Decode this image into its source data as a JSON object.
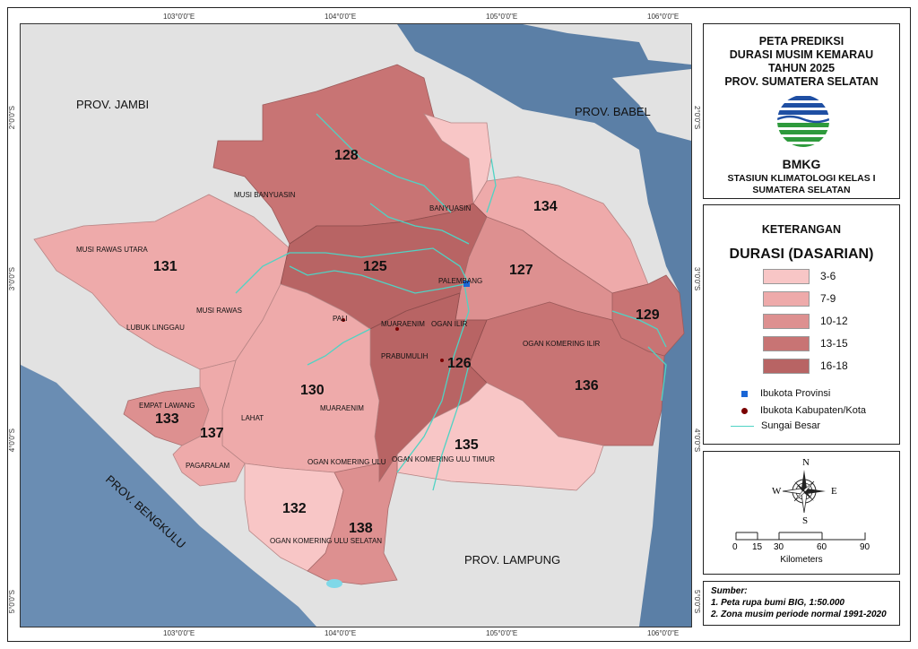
{
  "map": {
    "top_ticks": [
      "103°0'0\"E",
      "104°0'0\"E",
      "105°0'0\"E",
      "106°0'0\"E"
    ],
    "bottom_ticks": [
      "103°0'0\"E",
      "104°0'0\"E",
      "105°0'0\"E",
      "106°0'0\"E"
    ],
    "left_ticks": [
      "2°0'0\"S",
      "3°0'0\"S",
      "4°0'0\"S",
      "5°0'0\"S"
    ],
    "right_ticks": [
      "2°0'0\"S",
      "3°0'0\"S",
      "4°0'0\"S",
      "5°0'0\"S"
    ],
    "provinces": {
      "jambi": "PROV. JAMBI",
      "babel": "PROV. BABEL",
      "bengkulu": "PROV. BENGKULU",
      "lampung": "PROV. LAMPUNG"
    },
    "zones": [
      "128",
      "134",
      "131",
      "125",
      "127",
      "129",
      "126",
      "130",
      "136",
      "133",
      "137",
      "135",
      "132",
      "138"
    ],
    "regencies": {
      "musi_banyuasin": "MUSI BANYUASIN",
      "banyuasin": "BANYUASIN",
      "musi_rawas_utara": "MUSI RAWAS UTARA",
      "musi_rawas": "MUSI RAWAS",
      "lubuk_linggau": "LUBUK LINGGAU",
      "pali": "PALI",
      "muaraenim_city": "MUARAENIM",
      "ogan_ilir": "OGAN ILIR",
      "prabumulih": "PRABUMULIH",
      "oki": "OGAN KOMERING ILIR",
      "empat_lawang": "EMPAT LAWANG",
      "lahat": "LAHAT",
      "muaraenim": "MUARAENIM",
      "pagaralam": "PAGARALAM",
      "oku": "OGAN KOMERING ULU",
      "oku_timur": "OGAN KOMERING ULU TIMUR",
      "oku_selatan": "OGAN KOMERING ULU SELATAN",
      "palembang": "PALEMBANG"
    }
  },
  "title_block": {
    "lines": [
      "PETA PREDIKSI",
      "DURASI MUSIM KEMARAU",
      "TAHUN 2025",
      "PROV. SUMATERA SELATAN"
    ],
    "agency": "BMKG",
    "station_lines": [
      "STASIUN KLIMATOLOGI KELAS I",
      "SUMATERA SELATAN"
    ]
  },
  "legend": {
    "header": "KETERANGAN",
    "subheader": "DURASI (DASARIAN)",
    "classes": [
      {
        "label": "3-6",
        "color": "#f8c6c6"
      },
      {
        "label": "7-9",
        "color": "#eeaaaa"
      },
      {
        "label": "10-12",
        "color": "#dd9090"
      },
      {
        "label": "13-15",
        "color": "#c87474"
      },
      {
        "label": "16-18",
        "color": "#b86464"
      }
    ],
    "symbols": {
      "capital": "Ibukota Provinsi",
      "regency_capital": "Ibukota Kabupaten/Kota",
      "river": "Sungai Besar"
    }
  },
  "compass": {
    "n": "N",
    "s": "S",
    "e": "E",
    "w": "W"
  },
  "scale": {
    "ticks": [
      "0",
      "15",
      "30",
      "60",
      "90"
    ],
    "unit": "Kilometers"
  },
  "source": {
    "header": "Sumber:",
    "lines": [
      "1. Peta rupa bumi BIG, 1:50.000",
      "2. Zona musim periode normal 1991-2020"
    ]
  },
  "colors": {
    "sea": "#5b7fa6",
    "land_outside": "#e2e2e2",
    "river": "#4fd3c4",
    "capital_marker": "#1a66d6"
  }
}
